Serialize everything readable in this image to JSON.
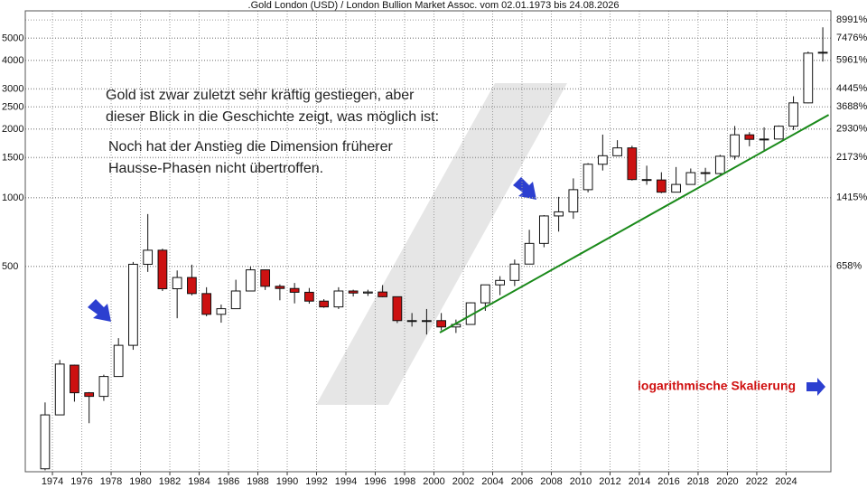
{
  "chart_data": {
    "type": "candlestick",
    "title": ".Gold London (USD) / London Bullion Market Assoc. vom 02.01.1973 bis 24.08.2026",
    "x": [
      1973,
      1974,
      1975,
      1976,
      1977,
      1978,
      1979,
      1980,
      1981,
      1982,
      1983,
      1984,
      1985,
      1986,
      1987,
      1988,
      1989,
      1990,
      1991,
      1992,
      1993,
      1994,
      1995,
      1996,
      1997,
      1998,
      1999,
      2000,
      2001,
      2002,
      2003,
      2004,
      2005,
      2006,
      2007,
      2008,
      2009,
      2010,
      2011,
      2012,
      2013,
      2014,
      2015,
      2016,
      2017,
      2018,
      2019,
      2020,
      2021,
      2022,
      2023,
      2024,
      2025,
      2026
    ],
    "open": [
      65,
      112,
      185,
      140,
      135,
      165,
      226,
      512,
      590,
      400,
      448,
      381,
      309,
      327,
      391,
      484,
      410,
      401,
      386,
      353,
      333,
      391,
      383,
      387,
      369,
      290,
      288,
      290,
      272,
      279,
      347,
      416,
      435,
      513,
      632,
      834,
      869,
      1087,
      1405,
      1531,
      1657,
      1204,
      1199,
      1060,
      1146,
      1291,
      1279,
      1523,
      1891,
      1806,
      1812,
      2063,
      2610,
      4310
    ],
    "high": [
      127,
      195,
      186,
      141,
      168,
      243,
      524,
      850,
      599,
      481,
      510,
      406,
      341,
      438,
      500,
      485,
      418,
      424,
      403,
      360,
      406,
      396,
      396,
      415,
      369,
      313,
      326,
      313,
      293,
      349,
      416,
      454,
      537,
      725,
      841,
      1011,
      1218,
      1421,
      1895,
      1791,
      1694,
      1385,
      1296,
      1366,
      1346,
      1355,
      1546,
      2067,
      1943,
      2039,
      2078,
      2790,
      4380,
      5595
    ],
    "low": [
      64,
      112,
      128,
      103,
      129,
      165,
      216,
      474,
      391,
      297,
      374,
      303,
      284,
      326,
      390,
      395,
      356,
      345,
      344,
      330,
      326,
      370,
      372,
      367,
      283,
      273,
      252,
      263,
      256,
      278,
      320,
      375,
      411,
      513,
      608,
      712,
      810,
      1058,
      1319,
      1527,
      1192,
      1142,
      1049,
      1060,
      1146,
      1178,
      1266,
      1471,
      1684,
      1614,
      1811,
      1985,
      2600,
      3960
    ],
    "close": [
      112,
      187,
      140,
      135,
      165,
      226,
      512,
      590,
      400,
      448,
      381,
      309,
      327,
      391,
      484,
      410,
      401,
      386,
      353,
      333,
      391,
      383,
      387,
      369,
      290,
      288,
      290,
      272,
      279,
      347,
      416,
      435,
      513,
      632,
      834,
      869,
      1087,
      1405,
      1531,
      1657,
      1204,
      1199,
      1060,
      1146,
      1291,
      1279,
      1523,
      1891,
      1806,
      1812,
      2063,
      2610,
      4310,
      4350
    ],
    "up_color": "#ffffff",
    "down_color": "#cc1111",
    "trendline": {
      "x": [
        2000.4,
        2026.9
      ],
      "values": [
        257,
        2313
      ],
      "color": "#1a8a1a"
    },
    "xlim": [
      1972.15,
      2027.05
    ],
    "xticks": [
      1974,
      1976,
      1978,
      1980,
      1982,
      1984,
      1986,
      1988,
      1990,
      1992,
      1994,
      1996,
      1998,
      2000,
      2002,
      2004,
      2006,
      2008,
      2010,
      2012,
      2014,
      2016,
      2018,
      2020,
      2022,
      2024
    ],
    "ylim": [
      63.1,
      6607
    ],
    "yticks": [
      500,
      1000,
      1500,
      2000,
      2500,
      3000,
      4000,
      5000
    ],
    "ylog": true,
    "y2lim": [
      -4.8,
      9865
    ],
    "y2ticks": [
      {
        "value": 8991,
        "label": "8991%"
      },
      {
        "value": 7476,
        "label": "7476%"
      },
      {
        "value": 5961,
        "label": "5961%"
      },
      {
        "value": 4445,
        "label": "4445%"
      },
      {
        "value": 3688,
        "label": "3688%"
      },
      {
        "value": 2930,
        "label": "2930%"
      },
      {
        "value": 2173,
        "label": "2173%"
      },
      {
        "value": 1415,
        "label": "1415%"
      },
      {
        "value": 658,
        "label": "658%"
      }
    ],
    "y2log": true,
    "grid": true,
    "annotations": {
      "intro": [
        "Gold ist zwar zuletzt sehr kräftig gestiegen, aber",
        "dieser Blick in die Geschichte zeigt, was möglich ist:"
      ],
      "note": [
        "Noch hat der Anstieg die Dimension früherer",
        "Hausse-Phasen nicht übertroffen."
      ],
      "scale": "logarithmische Skalierung"
    }
  }
}
